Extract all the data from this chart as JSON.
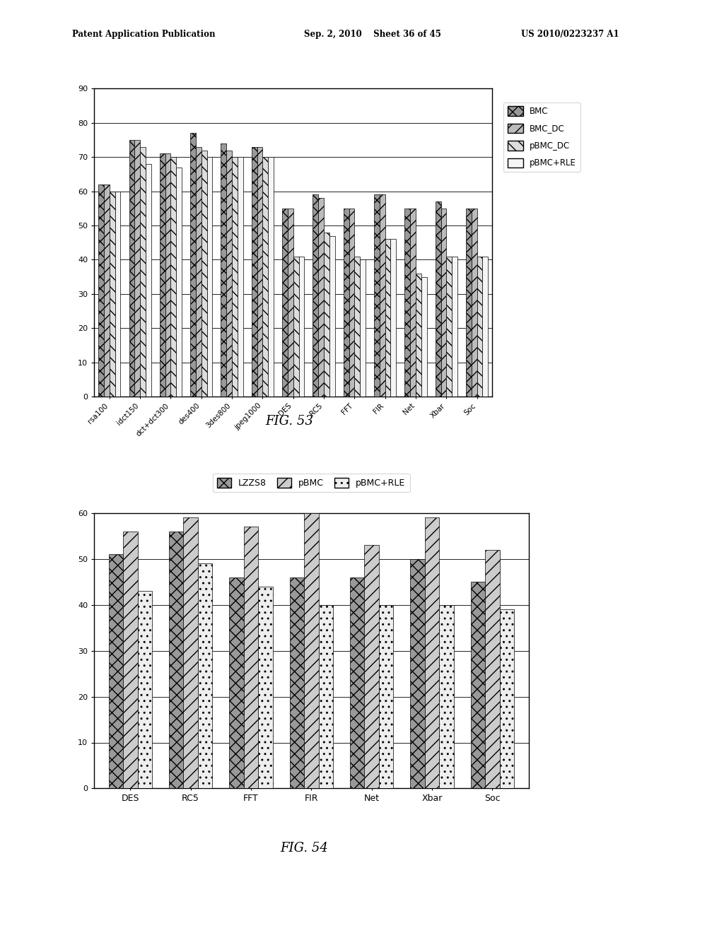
{
  "fig53": {
    "categories": [
      "rsa100",
      "idct150",
      "dct+dct300",
      "des400",
      "3des800",
      "jpeg1000",
      "DES",
      "RC5",
      "FFT",
      "FIR",
      "Net",
      "Xbar",
      "Soc"
    ],
    "series_order": [
      "BMC",
      "BMC_DC",
      "pBMC_DC",
      "pBMC+RLE"
    ],
    "series": {
      "BMC": [
        62,
        75,
        71,
        77,
        74,
        73,
        55,
        59,
        55,
        59,
        55,
        57,
        55
      ],
      "BMC_DC": [
        62,
        75,
        71,
        73,
        72,
        73,
        55,
        58,
        55,
        59,
        55,
        55,
        55
      ],
      "pBMC_DC": [
        60,
        73,
        70,
        72,
        70,
        70,
        41,
        48,
        41,
        46,
        36,
        41,
        41
      ],
      "pBMC+RLE": [
        60,
        68,
        67,
        70,
        70,
        70,
        41,
        47,
        40,
        46,
        35,
        41,
        41
      ]
    },
    "hatches": [
      "xx",
      "//",
      "\\\\",
      ""
    ],
    "facecolors": [
      "#999999",
      "#bbbbbb",
      "#dddddd",
      "#f5f5f5"
    ],
    "ylim": [
      0,
      90
    ],
    "yticks": [
      0,
      10,
      20,
      30,
      40,
      50,
      60,
      70,
      80,
      90
    ],
    "legend_labels": [
      "BMC",
      "BMC_DC",
      "pBMC_DC",
      "pBMC+RLE"
    ],
    "fig_label": "FIG. 53"
  },
  "fig54": {
    "categories": [
      "DES",
      "RC5",
      "FFT",
      "FIR",
      "Net",
      "Xbar",
      "Soc"
    ],
    "series_order": [
      "LZZS8",
      "pBMC",
      "pBMC+RLE"
    ],
    "series": {
      "LZZS8": [
        51,
        56,
        46,
        46,
        46,
        50,
        45
      ],
      "pBMC": [
        56,
        59,
        57,
        60,
        53,
        59,
        52
      ],
      "pBMC+RLE": [
        43,
        49,
        44,
        40,
        40,
        40,
        39
      ]
    },
    "hatches": [
      "xx",
      "//",
      ".."
    ],
    "facecolors": [
      "#999999",
      "#cccccc",
      "#eeeeee"
    ],
    "ylim": [
      0,
      60
    ],
    "yticks": [
      0,
      10,
      20,
      30,
      40,
      50,
      60
    ],
    "legend_labels": [
      "LZZS8",
      "pBMC",
      "pBMC+RLE"
    ],
    "fig_label": "FIG. 54"
  },
  "background_color": "#ffffff",
  "header_left": "Patent Application Publication",
  "header_mid": "Sep. 2, 2010    Sheet 36 of 45",
  "header_right": "US 2010/0223237 A1"
}
